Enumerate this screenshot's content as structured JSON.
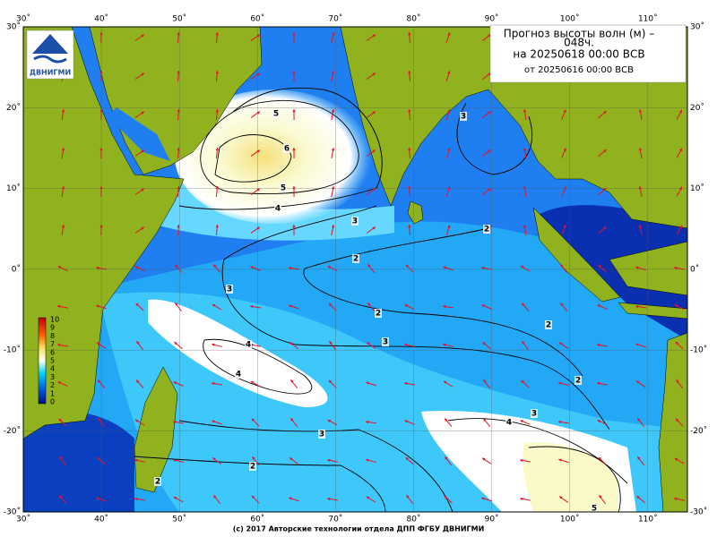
{
  "header": {
    "lines": [
      "Прогноз высоты волн (м) –",
      "048ч.",
      "на 20250618 00:00 ВСВ",
      "от 20250616 00:00 ВСВ"
    ],
    "logo": "ДВНИГМИ"
  },
  "axes": {
    "lon_top": [
      "30˚",
      "40˚",
      "50˚",
      "60˚",
      "70˚",
      "80˚",
      "90˚",
      "100˚",
      "110˚"
    ],
    "lon_bottom": [
      "30˚",
      "40˚",
      "50˚",
      "60˚",
      "70˚",
      "80˚",
      "90˚",
      "100˚",
      "110˚"
    ],
    "lat_left": [
      "30˚",
      "20˚",
      "10˚",
      "0˚",
      "-10˚",
      "-20˚",
      "-30˚"
    ],
    "lat_right": [
      "30˚",
      "20˚",
      "10˚",
      "0˚",
      "-10˚",
      "-20˚",
      "-30˚"
    ]
  },
  "colorbar": {
    "labels": [
      "10",
      "9",
      "8",
      "7",
      "6",
      "5",
      "4",
      "3",
      "2",
      "1",
      "0"
    ]
  },
  "contour_labels": [
    "5",
    "6",
    "5",
    "4",
    "3",
    "2",
    "3",
    "2",
    "2",
    "3",
    "4",
    "4",
    "3",
    "2",
    "2",
    "2",
    "3",
    "4",
    "5",
    "2",
    "3"
  ],
  "footer": "(c) 2017 Авторские технологии отдела ДПП ФГБУ ДВНИГМИ"
}
